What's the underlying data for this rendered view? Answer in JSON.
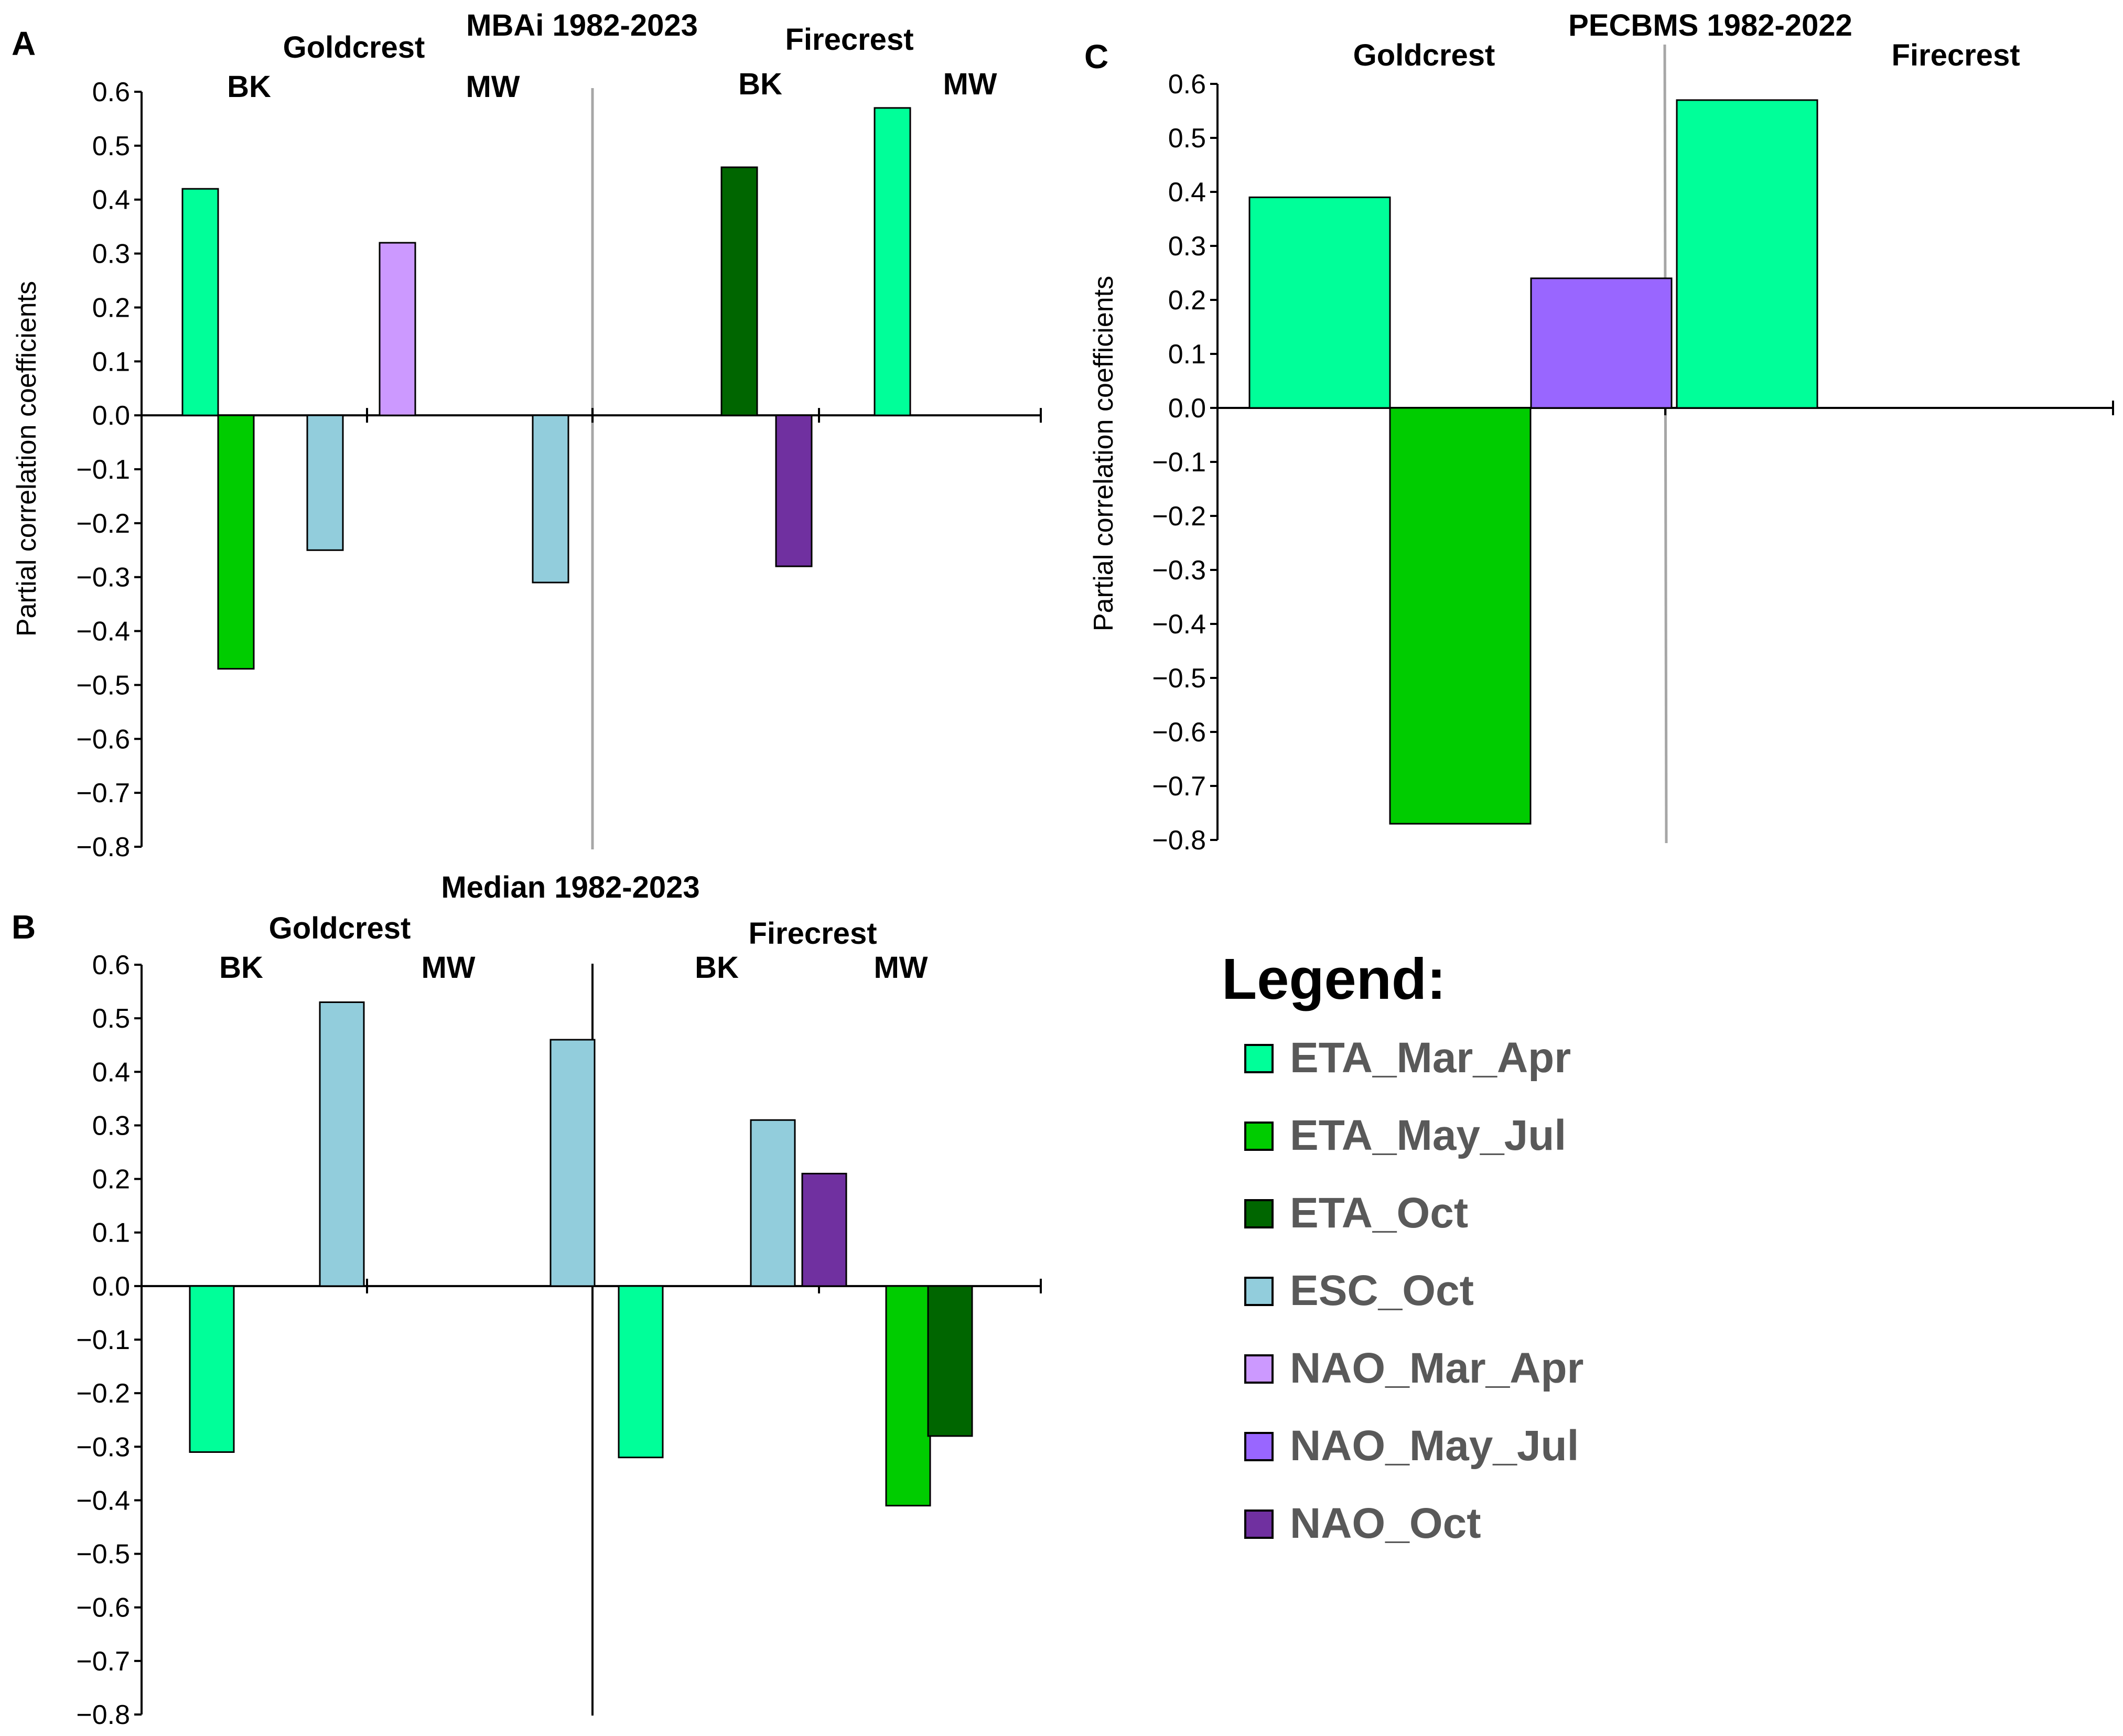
{
  "colors": {
    "ETA_Mar_Apr": "#00FF99",
    "ETA_May_Jul": "#00CC00",
    "ETA_Oct": "#006600",
    "ESC_Oct": "#92CDDC",
    "NAO_Mar_Apr": "#CC99FF",
    "NAO_May_Jul": "#9966FF",
    "NAO_Oct": "#7030A0"
  },
  "legend": {
    "title": "Legend:",
    "items": [
      {
        "key": "ETA_Mar_Apr",
        "label": "ETA_Mar_Apr"
      },
      {
        "key": "ETA_May_Jul",
        "label": "ETA_May_Jul"
      },
      {
        "key": "ETA_Oct",
        "label": "ETA_Oct"
      },
      {
        "key": "ESC_Oct",
        "label": "ESC_Oct"
      },
      {
        "key": "NAO_Mar_Apr",
        "label": "NAO_Mar_Apr"
      },
      {
        "key": "NAO_May_Jul",
        "label": "NAO_May_Jul"
      },
      {
        "key": "NAO_Oct",
        "label": "NAO_Oct"
      }
    ]
  },
  "chart_data": [
    {
      "panel": "A",
      "type": "bar",
      "title": "MBAi 1982-2023",
      "ylabel": "Partial correlation coefficients",
      "ylim": [
        -0.8,
        0.6
      ],
      "yticks": [
        "0.6",
        "0.5",
        "0.4",
        "0.3",
        "0.2",
        "0.1",
        "0.0",
        "-0.1",
        "-0.2",
        "-0.3",
        "-0.4",
        "-0.5",
        "-0.6",
        "-0.7",
        "-0.8"
      ],
      "species": [
        {
          "name": "Goldcrest",
          "groups": [
            {
              "name": "BK",
              "bars": [
                {
                  "key": "ETA_Mar_Apr",
                  "value": 0.42
                },
                {
                  "key": "ETA_May_Jul",
                  "value": -0.47
                },
                {
                  "key": "ESC_Oct",
                  "value": -0.25
                }
              ]
            },
            {
              "name": "MW",
              "bars": [
                {
                  "key": "NAO_Mar_Apr",
                  "value": 0.32
                },
                {
                  "key": "ESC_Oct",
                  "value": -0.31
                }
              ]
            }
          ]
        },
        {
          "name": "Firecrest",
          "groups": [
            {
              "name": "BK",
              "bars": [
                {
                  "key": "ETA_Oct",
                  "value": 0.46
                },
                {
                  "key": "NAO_Oct",
                  "value": -0.28
                }
              ]
            },
            {
              "name": "MW",
              "bars": [
                {
                  "key": "ETA_Mar_Apr",
                  "value": 0.57
                }
              ]
            }
          ]
        }
      ]
    },
    {
      "panel": "B",
      "type": "bar",
      "title": "Median 1982-2023",
      "ylabel": "",
      "ylim": [
        -0.8,
        0.6
      ],
      "yticks": [
        "0.6",
        "0.5",
        "0.4",
        "0.3",
        "0.2",
        "0.1",
        "0.0",
        "-0.1",
        "-0.2",
        "-0.3",
        "-0.4",
        "-0.5",
        "-0.6",
        "-0.7",
        "-0.8"
      ],
      "species": [
        {
          "name": "Goldcrest",
          "groups": [
            {
              "name": "BK",
              "bars": [
                {
                  "key": "ETA_Mar_Apr",
                  "value": -0.31
                },
                {
                  "key": "ESC_Oct",
                  "value": 0.53
                }
              ]
            },
            {
              "name": "MW",
              "bars": [
                {
                  "key": "ESC_Oct",
                  "value": 0.46
                }
              ]
            }
          ]
        },
        {
          "name": "Firecrest",
          "groups": [
            {
              "name": "BK",
              "bars": [
                {
                  "key": "ETA_Mar_Apr",
                  "value": -0.32
                },
                {
                  "key": "ESC_Oct",
                  "value": 0.31
                }
              ]
            },
            {
              "name": "MW",
              "bars": [
                {
                  "key": "NAO_Oct",
                  "value": 0.21
                },
                {
                  "key": "ETA_May_Jul",
                  "value": -0.41
                },
                {
                  "key": "ETA_Oct",
                  "value": -0.28
                }
              ]
            }
          ]
        }
      ]
    },
    {
      "panel": "C",
      "type": "bar",
      "title": "PECBMS 1982-2022",
      "ylabel": "Partial correlation coefficients",
      "ylim": [
        -0.8,
        0.6
      ],
      "yticks": [
        "0.6",
        "0.5",
        "0.4",
        "0.3",
        "0.2",
        "0.1",
        "0.0",
        "-0.1",
        "-0.2",
        "-0.3",
        "-0.4",
        "-0.5",
        "-0.6",
        "-0.7",
        "-0.8"
      ],
      "species": [
        {
          "name": "Goldcrest",
          "bars": [
            {
              "key": "ETA_Mar_Apr",
              "value": 0.39
            },
            {
              "key": "ETA_May_Jul",
              "value": -0.77
            },
            {
              "key": "NAO_May_Jul",
              "value": 0.24
            }
          ]
        },
        {
          "name": "Firecrest",
          "bars": [
            {
              "key": "ETA_Mar_Apr",
              "value": 0.57
            }
          ]
        }
      ]
    }
  ]
}
